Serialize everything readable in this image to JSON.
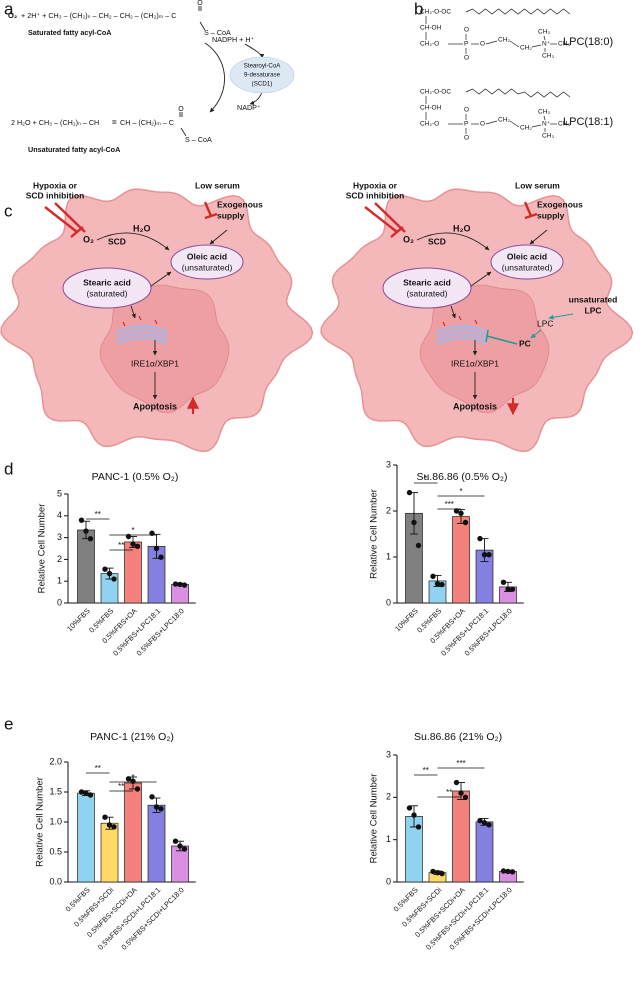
{
  "panel_labels": [
    "a",
    "b",
    "c",
    "d",
    "e"
  ],
  "a": {
    "equation_1": {
      "o2": "O₂",
      "rest": "+ 2H⁺ + CH₃ – (CH₂)ₙ – CH₂ – CH₂ – (CH₂)ₘ – C",
      "carbonyl": "O",
      "thioester": "S – CoA",
      "name": "Saturated fatty acyl-CoA"
    },
    "cofactor_in": "NADPH + H⁺",
    "enzyme": [
      "Stearoyl-CoA",
      "9-desaturase",
      "(SCD1)"
    ],
    "cofactor_out": "NADP⁺",
    "equation_2": {
      "left": "2 H₂O + CH₃ – (CH₂)ₙ – CH",
      "double_bond": "=",
      "right": "CH – (CH₂)ₘ – C",
      "carbonyl": "O",
      "thioester": "S – CoA",
      "name": "Unsaturated fatty acyl-CoA"
    }
  },
  "b": {
    "molecules": [
      {
        "atoms": [
          "CH₂-O-OC",
          "CH-OH",
          "CH₂-O",
          "O",
          "P",
          "O",
          "O",
          "CH₂",
          "CH₂",
          "N⁺",
          "CH₃",
          "CH₃",
          "CH₃"
        ],
        "name": "LPC(18:0)"
      },
      {
        "atoms": [
          "CH₂-O-OC",
          "CH-OH",
          "CH₂-O",
          "O",
          "P",
          "O",
          "O",
          "CH₂",
          "CH₂",
          "N⁺",
          "CH₃",
          "CH₃",
          "CH₃"
        ],
        "name": "LPC(18:1)"
      }
    ]
  },
  "c": {
    "left": {
      "inhibitor": [
        "Hypoxia or",
        "SCD inhibition"
      ],
      "low_serum": "Low serum",
      "supply": [
        "Exogenous",
        "supply"
      ],
      "o2": "O₂",
      "enzyme": "SCD",
      "water": "H₂O",
      "oleic": [
        "Oleic acid",
        "(unsaturated)"
      ],
      "stearic": [
        "Stearic acid",
        "(saturated)"
      ],
      "pathway": "IRE1α/XBP1",
      "outcome": "Apoptosis"
    },
    "right": {
      "inhibitor": [
        "Hypoxia or",
        "SCD inhibition"
      ],
      "low_serum": "Low serum",
      "supply": [
        "Exogenous",
        "supply"
      ],
      "o2": "O₂",
      "enzyme": "SCD",
      "water": "H₂O",
      "oleic": [
        "Oleic acid",
        "(unsaturated)"
      ],
      "stearic": [
        "Stearic acid",
        "(saturated)"
      ],
      "pathway": "IRE1α/XBP1",
      "outcome": "Apoptosis",
      "lpc_source": [
        "unsaturated",
        "LPC"
      ],
      "lpc": "LPC",
      "pc": "PC"
    }
  },
  "chart_data": [
    {
      "type": "bar",
      "title": "PANC-1 (0.5% O₂)",
      "y_label": "Relative Cell Number",
      "categories": [
        "10%FBS",
        "0.5%FBS",
        "0.5%FBS+OA",
        "0.5%FBS+LPC18:1",
        "0.5%FBS+LPC18:0"
      ],
      "values": [
        3.35,
        1.35,
        2.8,
        2.6,
        0.85
      ],
      "errors": [
        0.4,
        0.25,
        0.25,
        0.55,
        0.05
      ],
      "points": [
        [
          3.8,
          3.3,
          2.95
        ],
        [
          1.55,
          1.35,
          1.1
        ],
        [
          3.05,
          2.7,
          2.6
        ],
        [
          3.2,
          2.5,
          2.1
        ],
        [
          0.87,
          0.85,
          0.82
        ]
      ],
      "colors": [
        "#808080",
        "#8fd3f0",
        "#f4817c",
        "#8480e0",
        "#d98fe2"
      ],
      "ylim": [
        0,
        5
      ],
      "yticks": [
        0,
        1,
        2,
        3,
        4,
        5
      ],
      "significance": [
        {
          "label": "**",
          "between": [
            "10%FBS",
            "0.5%FBS"
          ]
        },
        {
          "label": "**",
          "between": [
            "0.5%FBS",
            "0.5%FBS+OA"
          ]
        },
        {
          "label": "*",
          "between": [
            "0.5%FBS",
            "0.5%FBS+LPC18:1"
          ]
        }
      ]
    },
    {
      "type": "bar",
      "title": "Su.86.86 (0.5% O₂)",
      "y_label": "Relative Cell Number",
      "categories": [
        "10%FBS",
        "0.5%FBS",
        "0.5%FBS+OA",
        "0.5%FBS+LPC18:1",
        "0.5%FBS+LPC18:0"
      ],
      "values": [
        1.95,
        0.48,
        1.88,
        1.15,
        0.35
      ],
      "errors": [
        0.45,
        0.12,
        0.15,
        0.25,
        0.1
      ],
      "points": [
        [
          2.4,
          1.75,
          1.25
        ],
        [
          0.58,
          0.42,
          0.4
        ],
        [
          2.0,
          1.95,
          1.75
        ],
        [
          1.4,
          1.05,
          1.05
        ],
        [
          0.45,
          0.3,
          0.3
        ]
      ],
      "colors": [
        "#808080",
        "#8fd3f0",
        "#f4817c",
        "#8480e0",
        "#d98fe2"
      ],
      "ylim": [
        0,
        3
      ],
      "yticks": [
        0,
        1,
        2,
        3
      ],
      "significance": [
        {
          "label": "*",
          "between": [
            "10%FBS",
            "0.5%FBS"
          ]
        },
        {
          "label": "***",
          "between": [
            "0.5%FBS",
            "0.5%FBS+OA"
          ]
        },
        {
          "label": "*",
          "between": [
            "0.5%FBS",
            "0.5%FBS+LPC18:1"
          ]
        }
      ]
    },
    {
      "type": "bar",
      "title": "PANC-1 (21% O₂)",
      "y_label": "Relative Cell Number",
      "categories": [
        "0.5%FBS",
        "0.5%FBS+SCDi",
        "0.5%FBS+SCDi+OA",
        "0.5%FBS+SCDi+LPC18:1",
        "0.5%FBS+SCDi+LPC18:0"
      ],
      "values": [
        1.48,
        0.98,
        1.65,
        1.28,
        0.6
      ],
      "errors": [
        0.04,
        0.1,
        0.1,
        0.12,
        0.08
      ],
      "points": [
        [
          1.5,
          1.48,
          1.45
        ],
        [
          1.08,
          0.95,
          0.92
        ],
        [
          1.72,
          1.68,
          1.55
        ],
        [
          1.42,
          1.25,
          1.22
        ],
        [
          0.68,
          0.6,
          0.55
        ]
      ],
      "colors": [
        "#8fd3f0",
        "#ffd966",
        "#f4817c",
        "#8480e0",
        "#d98fe2"
      ],
      "ylim": [
        0,
        2
      ],
      "yticks": [
        {
          "value": 0,
          "label": "0.0"
        },
        0.5,
        {
          "value": 1,
          "label": "1.0"
        },
        1.5,
        {
          "value": 2,
          "label": "2.0"
        }
      ],
      "significance": [
        {
          "label": "**",
          "between": [
            "0.5%FBS",
            "0.5%FBS+SCDi"
          ]
        },
        {
          "label": "**",
          "between": [
            "0.5%FBS+SCDi",
            "0.5%FBS+SCDi+OA"
          ]
        },
        {
          "label": "*",
          "between": [
            "0.5%FBS+SCDi",
            "0.5%FBS+SCDi+LPC18:1"
          ]
        }
      ]
    },
    {
      "type": "bar",
      "title": "Su.86.86 (21% O₂)",
      "y_label": "Relative Cell Number",
      "categories": [
        "0.5%FBS",
        "0.5%FBS+SCDi",
        "0.5%FBS+SCDi+OA",
        "0.5%FBS+SCDi+LPC18:1",
        "0.5%FBS+SCDi+LPC18:0"
      ],
      "values": [
        1.55,
        0.22,
        2.15,
        1.42,
        0.25
      ],
      "errors": [
        0.25,
        0.04,
        0.2,
        0.08,
        0.02
      ],
      "points": [
        [
          1.75,
          1.58,
          1.3
        ],
        [
          0.25,
          0.22,
          0.2
        ],
        [
          2.35,
          2.1,
          2.0
        ],
        [
          1.45,
          1.4,
          1.35
        ],
        [
          0.26,
          0.25,
          0.24
        ]
      ],
      "colors": [
        "#8fd3f0",
        "#ffd966",
        "#f4817c",
        "#8480e0",
        "#d98fe2"
      ],
      "ylim": [
        0,
        3
      ],
      "yticks": [
        0,
        1,
        2,
        3
      ],
      "significance": [
        {
          "label": "**",
          "between": [
            "0.5%FBS",
            "0.5%FBS+SCDi"
          ]
        },
        {
          "label": "**",
          "between": [
            "0.5%FBS+SCDi",
            "0.5%FBS+SCDi+OA"
          ]
        },
        {
          "label": "***",
          "between": [
            "0.5%FBS+SCDi",
            "0.5%FBS+SCDi+LPC18:1"
          ]
        }
      ]
    }
  ]
}
